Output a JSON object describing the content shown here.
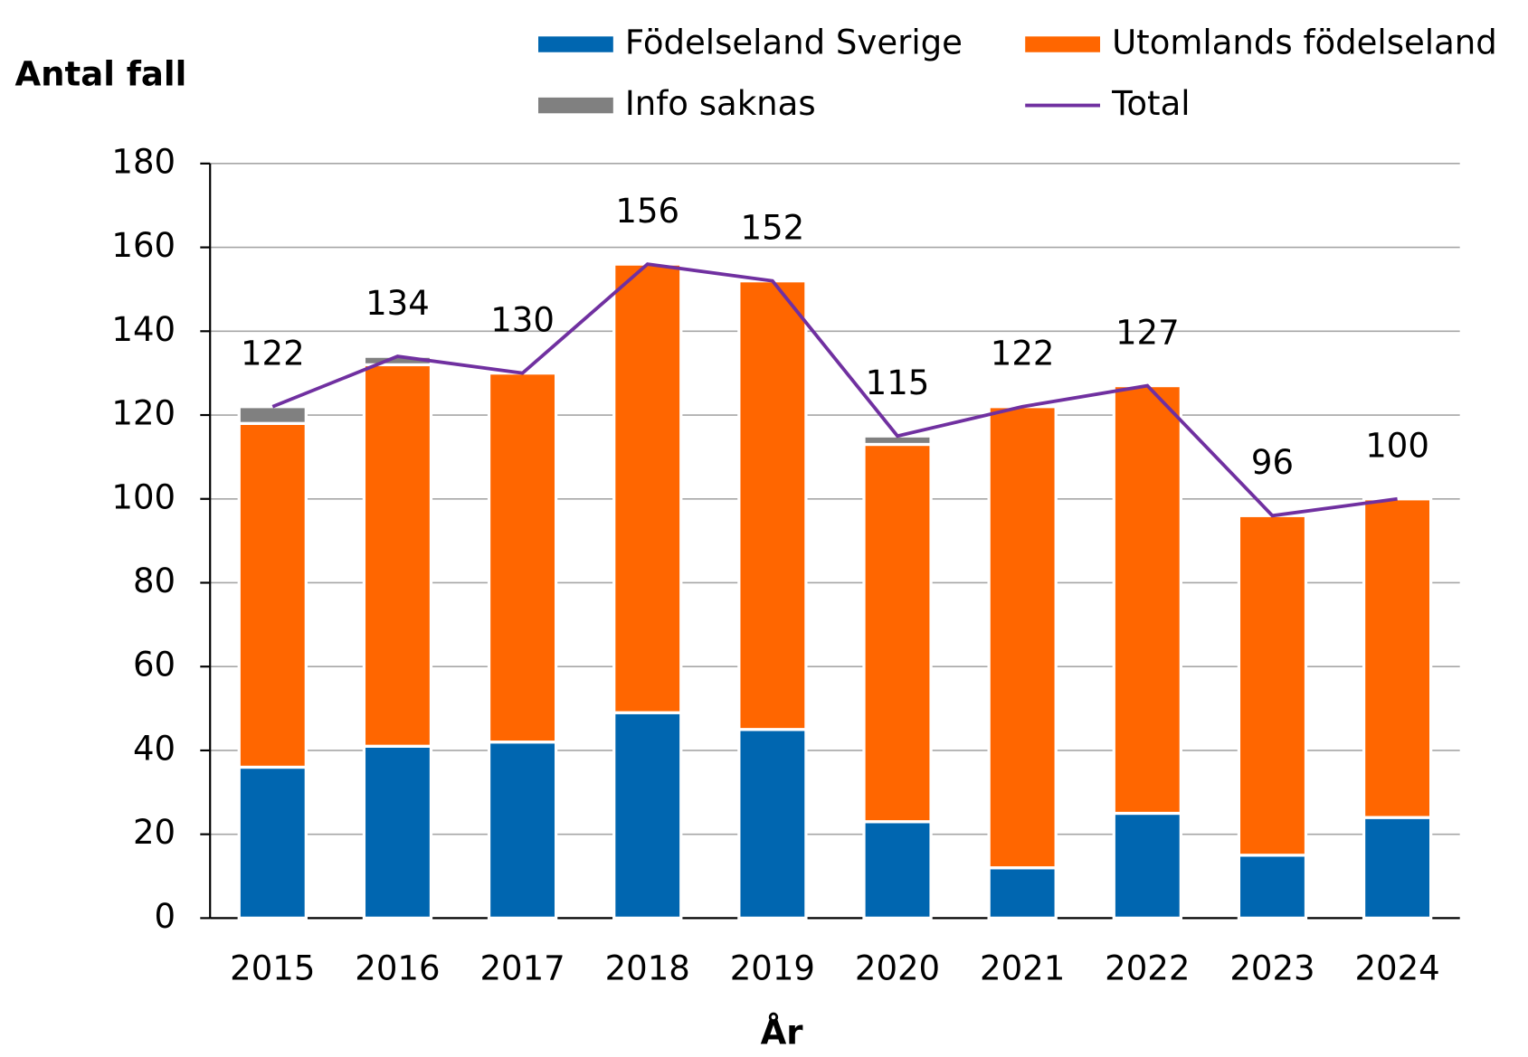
{
  "chart_data": {
    "type": "bar",
    "stacked": true,
    "y_label": "Antal fall",
    "x_label": "År",
    "categories": [
      "2015",
      "2016",
      "2017",
      "2018",
      "2019",
      "2020",
      "2021",
      "2022",
      "2023",
      "2024"
    ],
    "series": [
      {
        "name": "Födelseland Sverige",
        "type": "bar",
        "color": "#0066b0",
        "values": [
          36,
          41,
          42,
          49,
          45,
          23,
          12,
          25,
          15,
          24
        ]
      },
      {
        "name": "Utomlands födelseland",
        "type": "bar",
        "color": "#ff6600",
        "values": [
          82,
          91,
          88,
          107,
          107,
          90,
          110,
          102,
          81,
          76
        ]
      },
      {
        "name": "Info saknas",
        "type": "bar",
        "color": "#808080",
        "values": [
          4,
          2,
          0,
          0,
          0,
          2,
          0,
          0,
          0,
          0
        ]
      },
      {
        "name": "Total",
        "type": "line",
        "color": "#7030a0",
        "values": [
          122,
          134,
          130,
          156,
          152,
          115,
          122,
          127,
          96,
          100
        ]
      }
    ],
    "ylim": [
      0,
      180
    ],
    "yticks": [
      0,
      20,
      40,
      60,
      80,
      100,
      120,
      140,
      160,
      180
    ],
    "grid": true
  }
}
